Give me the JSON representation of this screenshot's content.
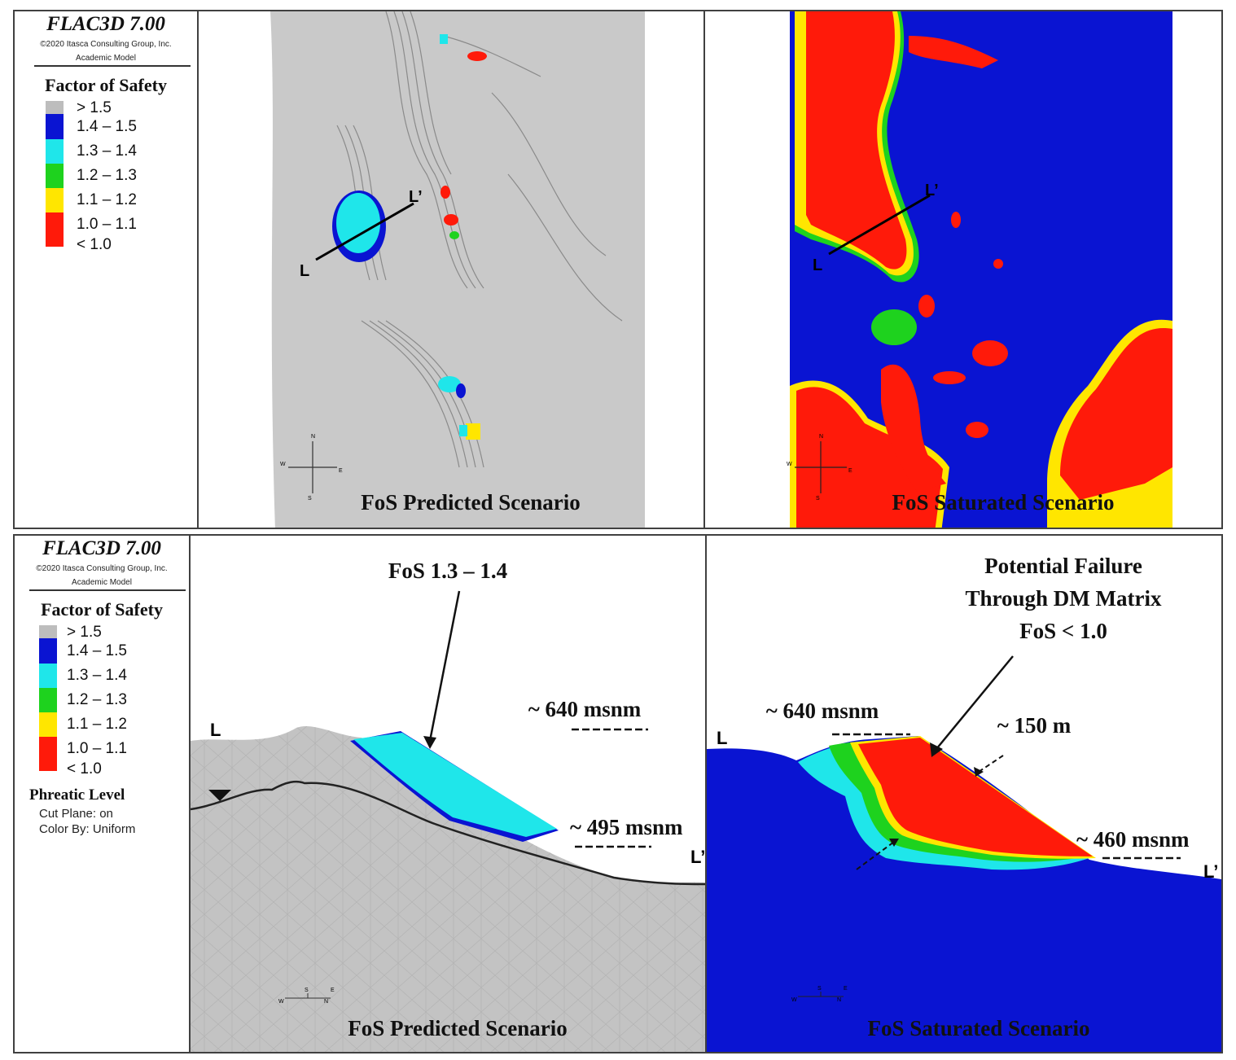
{
  "top": {
    "legend": {
      "software": "FLAC3D 7.00",
      "copyright": "©2020 Itasca Consulting Group, Inc.",
      "model": "Academic Model",
      "heading": "Factor of Safety",
      "items": [
        {
          "label": "> 1.5",
          "color": "#bdbdbd"
        },
        {
          "label": "1.4 – 1.5",
          "color": "#0a14d2"
        },
        {
          "label": "1.3 – 1.4",
          "color": "#1fe6ea"
        },
        {
          "label": "1.2 – 1.3",
          "color": "#1ed21e"
        },
        {
          "label": "1.1 – 1.2",
          "color": "#ffe600"
        },
        {
          "label": "1.0 – 1.1",
          "color": "#ff1a0a"
        },
        {
          "label": "< 1.0",
          "color": "#ff1a0a"
        }
      ]
    },
    "left_panel": {
      "caption": "FoS Predicted Scenario",
      "section_start": "L",
      "section_end": "L’",
      "compass": {
        "n": "N",
        "s": "S",
        "e": "E",
        "w": "W"
      }
    },
    "right_panel": {
      "caption": "FoS Saturated Scenario",
      "section_start": "L",
      "section_end": "L’",
      "compass": {
        "n": "N",
        "s": "S",
        "e": "E",
        "w": "W"
      }
    }
  },
  "bottom": {
    "legend": {
      "software": "FLAC3D 7.00",
      "copyright": "©2020 Itasca Consulting Group, Inc.",
      "model": "Academic Model",
      "heading": "Factor of Safety",
      "items": [
        {
          "label": "> 1.5",
          "color": "#bdbdbd"
        },
        {
          "label": "1.4 – 1.5",
          "color": "#0a14d2"
        },
        {
          "label": "1.3 – 1.4",
          "color": "#1fe6ea"
        },
        {
          "label": "1.2 – 1.3",
          "color": "#1ed21e"
        },
        {
          "label": "1.1 – 1.2",
          "color": "#ffe600"
        },
        {
          "label": "1.0 – 1.1",
          "color": "#ff1a0a"
        },
        {
          "label": "< 1.0",
          "color": "#ff1a0a"
        }
      ],
      "phreatic_title": "Phreatic Level",
      "phreatic_items": [
        "Cut Plane: on",
        "Color By: Uniform"
      ]
    },
    "left_panel": {
      "caption": "FoS Predicted Scenario",
      "annotation": "FoS 1.3 – 1.4",
      "elev_top": "~ 640 msnm",
      "elev_bottom": "~ 495 msnm",
      "section_start": "L",
      "section_end": "L’",
      "compass": {
        "s": "S",
        "e": "E",
        "w": "W",
        "n": "N"
      }
    },
    "right_panel": {
      "caption": "FoS Saturated Scenario",
      "annotation_line1": "Potential Failure",
      "annotation_line2": "Through  DM Matrix",
      "annotation_line3": "FoS < 1.0",
      "elev_top": "~ 640 msnm",
      "elev_bottom": "~ 460 msnm",
      "distance": "~ 150 m",
      "section_start": "L",
      "section_end": "L’",
      "compass": {
        "s": "S",
        "e": "E",
        "w": "W",
        "n": "N"
      }
    }
  }
}
